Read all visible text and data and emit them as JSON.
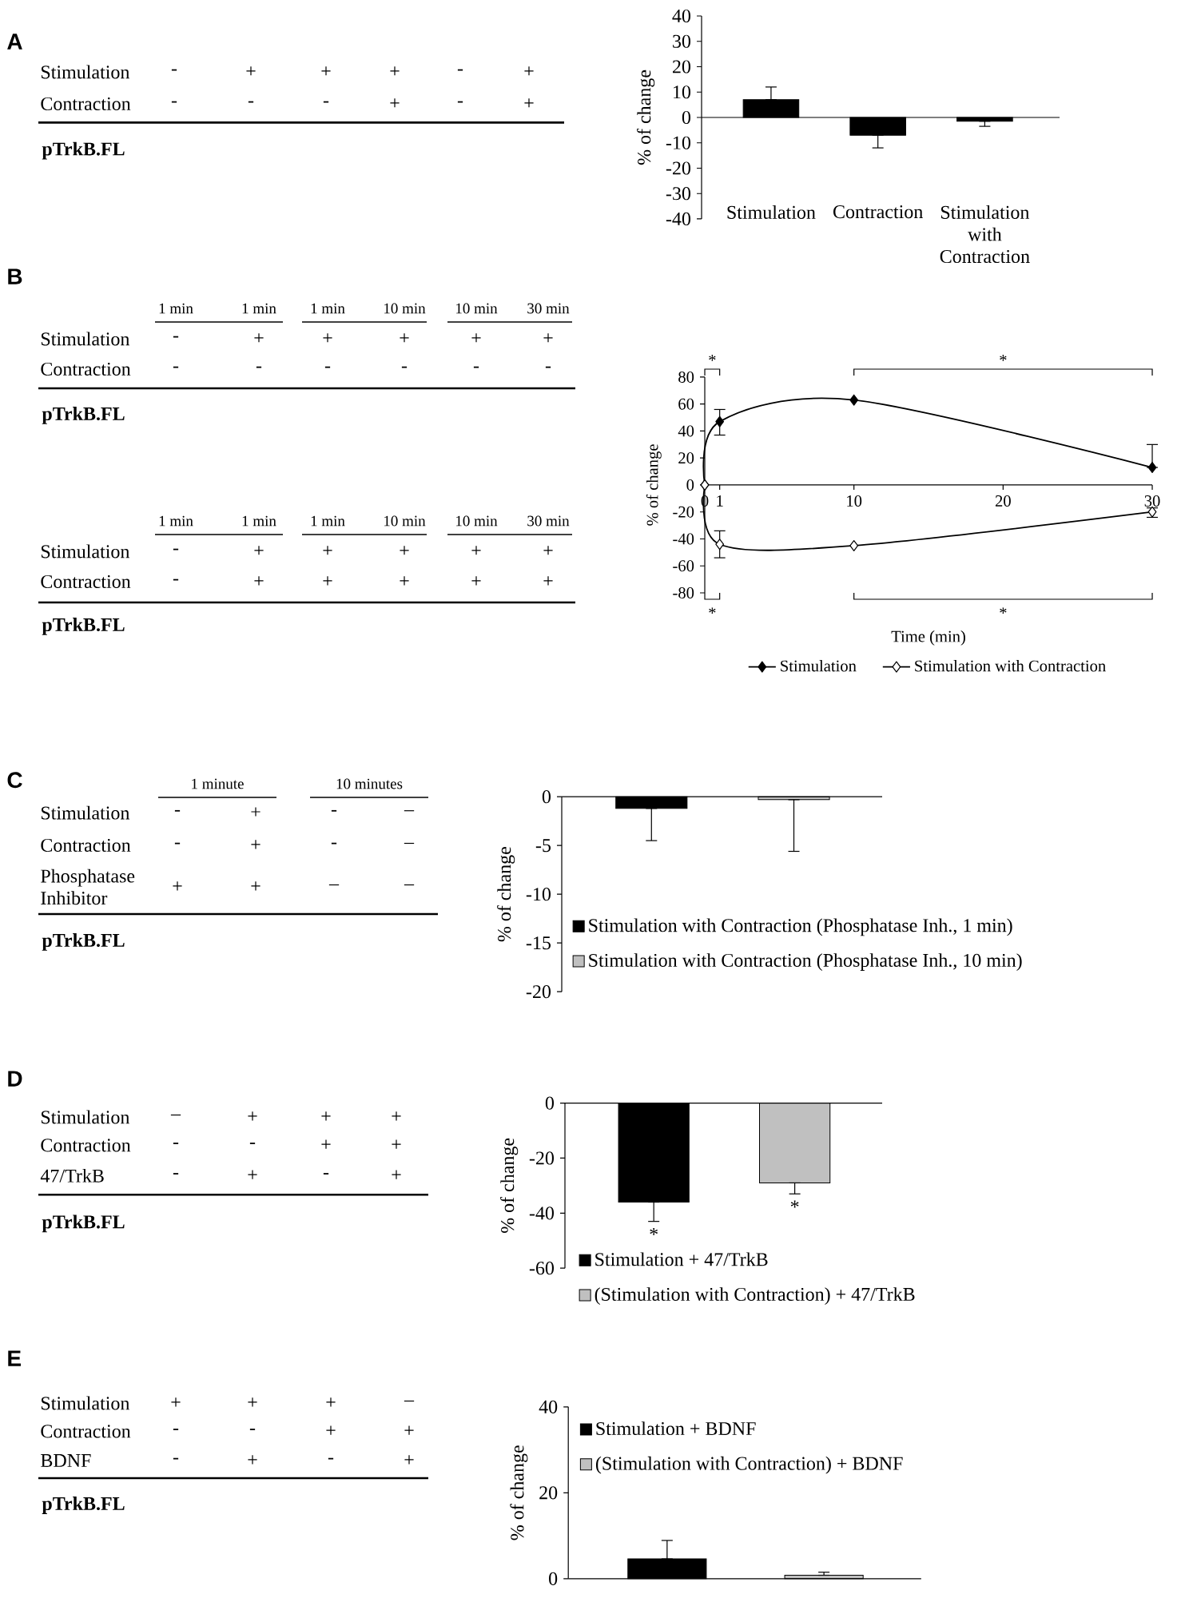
{
  "chart_data": [
    {
      "type": "bar",
      "categories": [
        "Stimulation",
        "Contraction",
        "Stimulation with Contraction"
      ],
      "values": [
        7,
        -7,
        -1.5
      ],
      "errors": [
        [
          7,
          12
        ],
        [
          -12,
          -7
        ],
        [
          -3.5,
          -1.5
        ]
      ],
      "color": "#000000",
      "ylabel": "% of change",
      "ylim": [
        -40,
        40
      ],
      "yticks": [
        -40,
        -30,
        -20,
        -10,
        0,
        10,
        20,
        30,
        40
      ],
      "annotations": [
        "A",
        "Stimulation",
        "-",
        "+",
        "+",
        "+",
        "-",
        "+",
        "Contraction",
        "-",
        "-",
        "-",
        "+",
        "-",
        "+",
        "pTrkB.FL"
      ]
    },
    {
      "type": "line",
      "x": [
        0,
        1,
        10,
        30
      ],
      "series": [
        {
          "name": "Stimulation",
          "color": "#000000",
          "values": [
            0,
            47,
            63,
            13
          ],
          "errors": [
            null,
            [
              37,
              56
            ],
            null,
            [
              13,
              30
            ]
          ]
        },
        {
          "name": "Stimulation with Contraction",
          "color": "#000000",
          "values": [
            0,
            -44,
            -45,
            -20
          ],
          "errors": [
            null,
            [
              -54,
              -34
            ],
            null,
            [
              -24,
              -17
            ]
          ]
        }
      ],
      "marker": "diamond",
      "xlabel": "Time (min)",
      "ylabel": "% of change",
      "xlim": [
        0,
        30
      ],
      "xticks": [
        0,
        1,
        10,
        20,
        30
      ],
      "ylim": [
        -80,
        80
      ],
      "yticks": [
        -80,
        -60,
        -40,
        -20,
        0,
        20,
        40,
        60,
        80
      ],
      "legend": "bottom",
      "annotations": [
        "B",
        "*",
        "*",
        "*",
        "*",
        "1 min",
        "1 min",
        "1 min",
        "10 min",
        "10 min",
        "30 min",
        "Stimulation",
        "-",
        "+",
        "+",
        "+",
        "+",
        "+",
        "Contraction",
        "-",
        "-",
        "-",
        "-",
        "-",
        "-",
        "pTrkB.FL",
        "1 min",
        "1 min",
        "1 min",
        "10 min",
        "10 min",
        "30 min",
        "Stimulation",
        "-",
        "+",
        "+",
        "+",
        "+",
        "+",
        "Contraction",
        "-",
        "+",
        "+",
        "+",
        "+",
        "+",
        "pTrkB.FL"
      ]
    },
    {
      "type": "bar",
      "categories": [
        null,
        null
      ],
      "series": [
        {
          "name": "Stimulation with Contraction (Phosphatase Inh., 1 min)",
          "color": "#000000",
          "values": [
            -1.2,
            null
          ],
          "errors": [
            [
              -4.5,
              -1.2
            ],
            null
          ]
        },
        {
          "name": "Stimulation with Contraction (Phosphatase Inh., 10 min)",
          "color": "#c0c0c0",
          "values": [
            null,
            -0.3
          ],
          "errors": [
            null,
            [
              -5.6,
              -0.3
            ]
          ]
        }
      ],
      "ylabel": "% of change",
      "ylim": [
        -20,
        0
      ],
      "yticks": [
        -20,
        -15,
        -10,
        -5,
        0
      ],
      "legend": "bottom right",
      "annotations": [
        "C",
        "1 minute",
        "10 minutes",
        "Stimulation",
        "-",
        "+",
        "-",
        "–",
        "Contraction",
        "-",
        "+",
        "-",
        "–",
        "Phosphatase Inhibitor",
        "+",
        "+",
        "–",
        "–",
        "pTrkB.FL"
      ]
    },
    {
      "type": "bar",
      "categories": [
        null,
        null
      ],
      "series": [
        {
          "name": "Stimulation + 47/TrkB",
          "color": "#000000",
          "values": [
            -36,
            null
          ],
          "errors": [
            [
              -43,
              -36
            ],
            null
          ]
        },
        {
          "name": "(Stimulation with Contraction) + 47/TrkB",
          "color": "#c0c0c0",
          "values": [
            null,
            -29
          ],
          "errors": [
            null,
            [
              -33,
              -29
            ]
          ]
        }
      ],
      "ylabel": "% of change",
      "ylim": [
        -60,
        0
      ],
      "yticks": [
        -60,
        -40,
        -20,
        0
      ],
      "legend": "bottom right",
      "annotations": [
        "D",
        "*",
        "*",
        "Stimulation",
        "–",
        "+",
        "+",
        "+",
        "Contraction",
        "-",
        "-",
        "+",
        "+",
        "47/TrkB",
        "-",
        "+",
        "-",
        "+",
        "pTrkB.FL"
      ]
    },
    {
      "type": "bar",
      "categories": [
        null,
        null
      ],
      "series": [
        {
          "name": "Stimulation + BDNF",
          "color": "#000000",
          "values": [
            4.6,
            null
          ],
          "errors": [
            [
              4.6,
              8.9
            ],
            null
          ]
        },
        {
          "name": "(Stimulation with Contraction) + BDNF",
          "color": "#c0c0c0",
          "values": [
            null,
            0.8
          ],
          "errors": [
            null,
            [
              0.8,
              1.5
            ]
          ]
        }
      ],
      "ylabel": "% of change",
      "ylim": [
        0,
        40
      ],
      "yticks": [
        0,
        20,
        40
      ],
      "legend": "top right",
      "annotations": [
        "E",
        "Stimulation",
        "+",
        "+",
        "+",
        "–",
        "Contraction",
        "-",
        "-",
        "+",
        "+",
        "BDNF",
        "-",
        "+",
        "-",
        "+",
        "pTrkB.FL"
      ]
    }
  ]
}
